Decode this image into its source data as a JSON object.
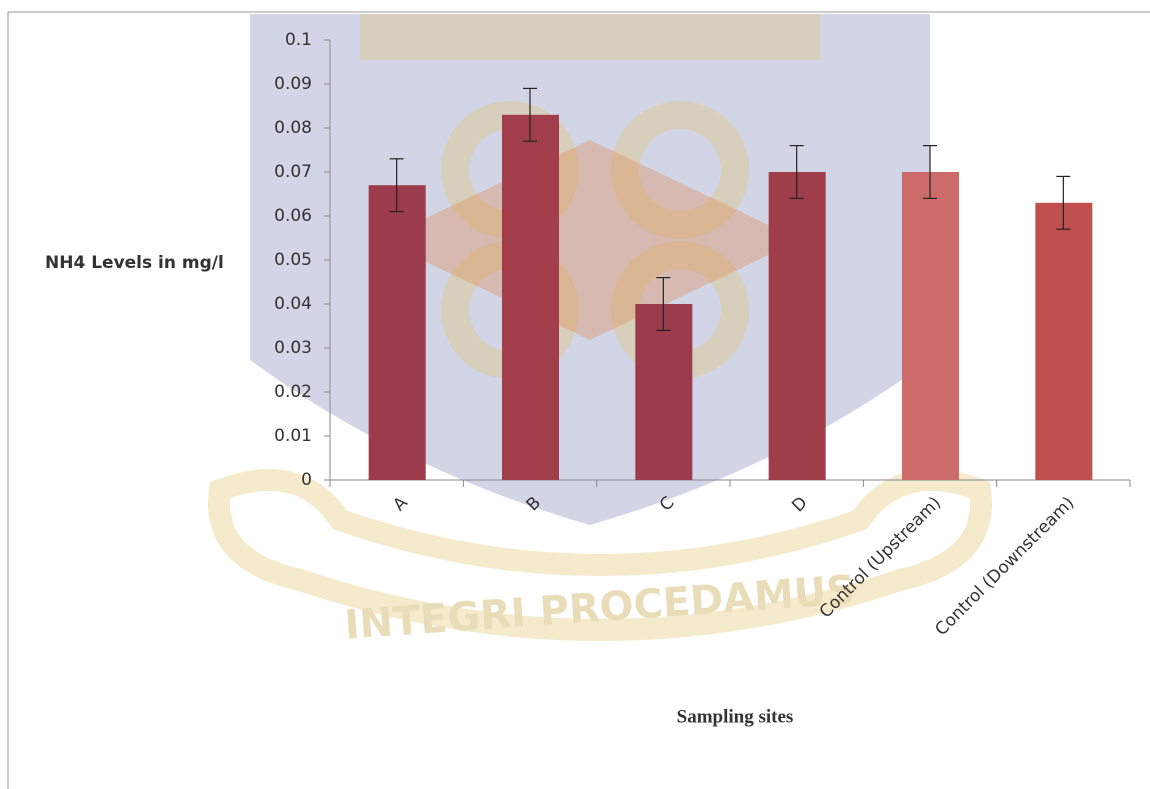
{
  "chart_data": {
    "type": "bar",
    "categories": [
      "A",
      "B",
      "C",
      "D",
      "Control (Upstream)",
      "Control (Downstream)"
    ],
    "values": [
      0.067,
      0.083,
      0.04,
      0.07,
      0.07,
      0.063
    ],
    "errors": [
      0.006,
      0.006,
      0.006,
      0.006,
      0.006,
      0.006
    ],
    "colors": [
      "#9c3b4b",
      "#a23e4c",
      "#9c3b4b",
      "#a03d4b",
      "#cd6b6a",
      "#c0504d"
    ],
    "y_label": "NH4 Levels in mg/l",
    "x_label": "Sampling sites",
    "watermark": "INTEGRI PROCEDAMUS",
    "ylim": [
      0,
      0.1
    ],
    "yticks": [
      0,
      0.01,
      0.02,
      0.03,
      0.04,
      0.05,
      0.06,
      0.07,
      0.08,
      0.09,
      0.1
    ],
    "grid": false
  }
}
